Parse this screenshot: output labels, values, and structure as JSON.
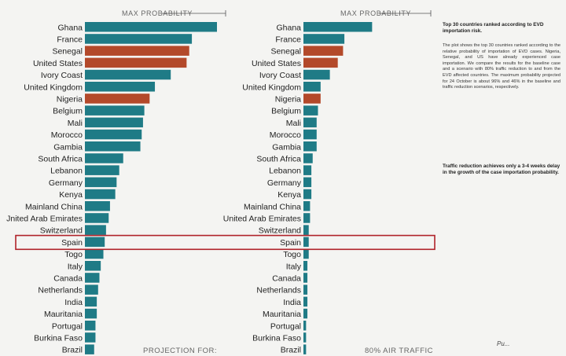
{
  "chart_data": [
    {
      "type": "bar",
      "orientation": "horizontal",
      "title": "MAX PROBABILITY",
      "footer_label": "PROJECTION FOR:",
      "categories": [
        "Ghana",
        "France",
        "Senegal",
        "United States",
        "Ivory Coast",
        "United Kingdom",
        "Nigeria",
        "Belgium",
        "Mali",
        "Morocco",
        "Gambia",
        "South Africa",
        "Lebanon",
        "Germany",
        "Kenya",
        "Mainland China",
        "Jnited Arab Emirates",
        "Switzerland",
        "Spain",
        "Togo",
        "Italy",
        "Canada",
        "Netherlands",
        "India",
        "Mauritania",
        "Portugal",
        "Burkina Faso",
        "Brazil"
      ],
      "values": [
        1.0,
        0.81,
        0.79,
        0.77,
        0.65,
        0.53,
        0.49,
        0.45,
        0.44,
        0.43,
        0.42,
        0.29,
        0.26,
        0.24,
        0.23,
        0.19,
        0.18,
        0.16,
        0.15,
        0.14,
        0.12,
        0.11,
        0.1,
        0.09,
        0.09,
        0.08,
        0.08,
        0.07
      ],
      "xlim": [
        0,
        1
      ],
      "highlighted_already_imported": [
        "Senegal",
        "United States",
        "Nigeria"
      ],
      "highlight_box_category": "Spain"
    },
    {
      "type": "bar",
      "orientation": "horizontal",
      "title": "MAX PROBABILITY",
      "footer_label": "80% AIR TRAFFIC",
      "categories": [
        "Ghana",
        "France",
        "Senegal",
        "United States",
        "Ivory Coast",
        "United Kingdom",
        "Nigeria",
        "Belgium",
        "Mali",
        "Morocco",
        "Gambia",
        "South Africa",
        "Lebanon",
        "Germany",
        "Kenya",
        "Mainland China",
        "United Arab Emirates",
        "Switzerland",
        "Spain",
        "Togo",
        "Italy",
        "Canada",
        "Netherlands",
        "India",
        "Mauritania",
        "Portugal",
        "Burkina Faso",
        "Brazil"
      ],
      "values": [
        0.52,
        0.31,
        0.3,
        0.26,
        0.2,
        0.13,
        0.13,
        0.11,
        0.1,
        0.1,
        0.1,
        0.07,
        0.06,
        0.06,
        0.06,
        0.05,
        0.05,
        0.04,
        0.04,
        0.04,
        0.03,
        0.03,
        0.03,
        0.03,
        0.03,
        0.02,
        0.02,
        0.02
      ],
      "xlim": [
        0,
        1
      ],
      "highlighted_already_imported": [
        "Senegal",
        "United States",
        "Nigeria"
      ],
      "highlight_box_category": "Spain"
    }
  ],
  "colors": {
    "bar": "#1f7b86",
    "imported": "#b3492a",
    "highlight_box": "#b0232a",
    "axis_line": "#555555"
  },
  "side_panel": {
    "title": "Top 30 countries ranked according to EVD importation risk.",
    "description": "The plot shows the top 30 countries ranked according to the relative probability of importation of EVD cases. Nigeria, Senegal, and US have already experienced case importation. We compare the results for the baseline case and a scenario with 80% traffic reduction to and from the EVD affected countries. The maximum probability projected for 24 October is about 96% and 46% in the baseline and traffic reduction scenarios, respectively.",
    "note": "Traffic reduction achieves only a 3-4 weeks delay in the growth of the case importation probability."
  },
  "publisher": "Pu..."
}
